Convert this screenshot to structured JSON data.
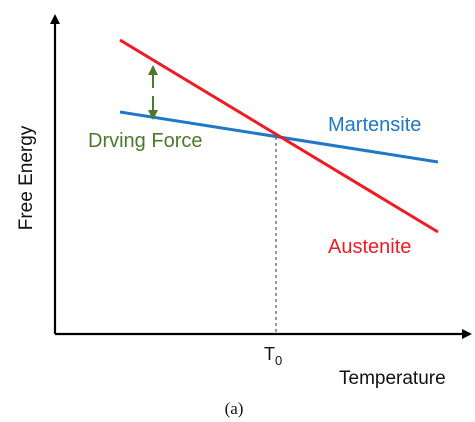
{
  "diagram": {
    "y_axis_label": "Free Energy",
    "x_axis_label": "Temperature",
    "t0_base": "T",
    "t0_sub": "0",
    "driving_force_label": "Drving Force",
    "martensite_label": "Martensite",
    "austenite_label": "Austenite",
    "caption": "(a)"
  },
  "colors": {
    "martensite": "#1f77c8",
    "austenite": "#ee1c24",
    "driving_force": "#4a7a2a",
    "axis": "#000000",
    "text": "#111111"
  }
}
